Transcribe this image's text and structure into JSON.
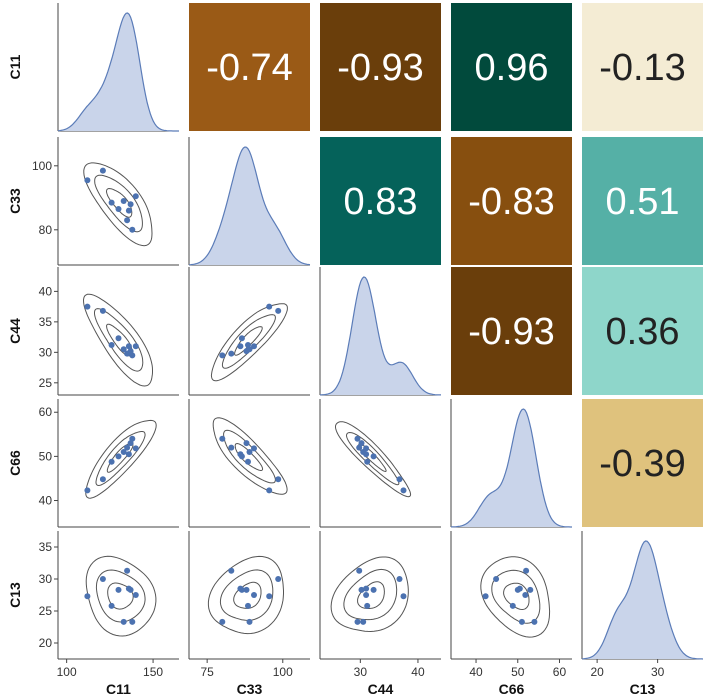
{
  "chart_data": {
    "type": "pairplot",
    "variables": [
      "C11",
      "C33",
      "C44",
      "C66",
      "C13"
    ],
    "axes": {
      "C11": {
        "range": [
          95,
          165
        ],
        "ticks": [
          100,
          150
        ],
        "tick_labels": [
          "100",
          "150"
        ]
      },
      "C33": {
        "range": [
          69,
          109
        ],
        "ticks": [
          75,
          100
        ],
        "tick_labels": [
          "75",
          "100"
        ],
        "y_ticks": [
          80,
          100
        ],
        "y_tick_labels": [
          "80",
          "100"
        ]
      },
      "C44": {
        "range": [
          23,
          44
        ],
        "ticks": [
          30,
          40
        ],
        "tick_labels": [
          "30",
          "40"
        ],
        "y_ticks": [
          25,
          30,
          35,
          40
        ],
        "y_tick_labels": [
          "25",
          "30",
          "35",
          "40"
        ]
      },
      "C66": {
        "range": [
          34,
          63
        ],
        "ticks": [
          40,
          50,
          60
        ],
        "tick_labels": [
          "40",
          "50",
          "60"
        ],
        "y_ticks": [
          40,
          50,
          60
        ],
        "y_tick_labels": [
          "40",
          "50",
          "60"
        ]
      },
      "C13": {
        "range": [
          17.5,
          37.5
        ],
        "ticks": [
          20,
          30
        ],
        "tick_labels": [
          "20",
          "30"
        ],
        "y_ticks": [
          20,
          25,
          30,
          35
        ],
        "y_tick_labels": [
          "20",
          "25",
          "30",
          "35"
        ]
      }
    },
    "samples": [
      {
        "C11": 112,
        "C33": 95.5,
        "C44": 37.5,
        "C66": 42.3,
        "C13": 27.3
      },
      {
        "C11": 121,
        "C33": 98.5,
        "C44": 36.8,
        "C66": 44.8,
        "C13": 30.0
      },
      {
        "C11": 126,
        "C33": 88.5,
        "C44": 31.2,
        "C66": 48.8,
        "C13": 25.8
      },
      {
        "C11": 130,
        "C33": 86.5,
        "C44": 32.3,
        "C66": 50.0,
        "C13": 28.3
      },
      {
        "C11": 133,
        "C33": 89.0,
        "C44": 30.5,
        "C66": 51.0,
        "C13": 23.3
      },
      {
        "C11": 135,
        "C33": 83.0,
        "C44": 29.8,
        "C66": 52.0,
        "C13": 31.3
      },
      {
        "C11": 136,
        "C33": 86.0,
        "C44": 31.0,
        "C66": 50.5,
        "C13": 28.5
      },
      {
        "C11": 138,
        "C33": 80.0,
        "C44": 29.5,
        "C66": 54.0,
        "C13": 23.3
      },
      {
        "C11": 140,
        "C33": 90.5,
        "C44": 31.0,
        "C66": 51.8,
        "C13": 27.5
      },
      {
        "C11": 137,
        "C33": 88.0,
        "C44": 30.2,
        "C66": 53.0,
        "C13": 28.3
      }
    ],
    "correlations": [
      {
        "row": "C11",
        "col": "C33",
        "value": "-0.74",
        "color": "#9A5A16",
        "text_color": "#ffffff"
      },
      {
        "row": "C11",
        "col": "C44",
        "value": "-0.93",
        "color": "#6A3E0B",
        "text_color": "#ffffff"
      },
      {
        "row": "C11",
        "col": "C66",
        "value": "0.96",
        "color": "#014A3C",
        "text_color": "#ffffff"
      },
      {
        "row": "C11",
        "col": "C13",
        "value": "-0.13",
        "color": "#F4ECD4",
        "text_color": "#222222"
      },
      {
        "row": "C33",
        "col": "C44",
        "value": "0.83",
        "color": "#05625A",
        "text_color": "#ffffff"
      },
      {
        "row": "C33",
        "col": "C66",
        "value": "-0.83",
        "color": "#874F0F",
        "text_color": "#ffffff"
      },
      {
        "row": "C33",
        "col": "C13",
        "value": "0.51",
        "color": "#55B0A6",
        "text_color": "#ffffff"
      },
      {
        "row": "C44",
        "col": "C66",
        "value": "-0.93",
        "color": "#6A3E0B",
        "text_color": "#ffffff"
      },
      {
        "row": "C44",
        "col": "C13",
        "value": "0.36",
        "color": "#8ED6CA",
        "text_color": "#222222"
      },
      {
        "row": "C66",
        "col": "C13",
        "value": "-0.39",
        "color": "#DFC27D",
        "text_color": "#222222"
      }
    ],
    "colors": {
      "kde_fill": "#C9D4EA",
      "kde_line": "#5B7CB8",
      "point": "#4C72B0",
      "contour": "#555555",
      "axis": "#444444"
    },
    "lower_panels": "scatter with kde contours",
    "diagonal_panels": "kde density",
    "upper_panels": "correlation heatmap"
  }
}
